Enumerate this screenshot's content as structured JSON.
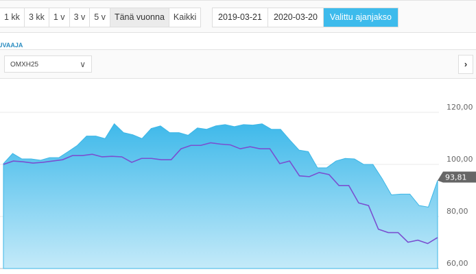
{
  "period_buttons": [
    {
      "label": "1 kk"
    },
    {
      "label": "3 kk"
    },
    {
      "label": "1 v"
    },
    {
      "label": "3 v"
    },
    {
      "label": "5 v"
    },
    {
      "label": "Tänä vuonna",
      "active": true
    },
    {
      "label": "Kaikki"
    }
  ],
  "date_range": {
    "start": "2019-03-21",
    "end": "2020-03-20",
    "apply_label": "Valittu ajanjakso"
  },
  "section_title": "UVAAJA",
  "index_select": {
    "value": "OMXH25"
  },
  "colors": {
    "accent": "#3dbbec",
    "area": "#4fc1ec",
    "line": "#7a4fd0",
    "label_bg": "#666666"
  },
  "icons": {
    "select": "chevron-down-icon",
    "next": "chevron-right-icon"
  },
  "chart_data": {
    "type": "area",
    "ylim": [
      60,
      120
    ],
    "yticks": [
      "120,00",
      "100,00",
      "80,00",
      "60,00"
    ],
    "ytick_values": [
      120,
      100,
      80,
      60
    ],
    "grid": true,
    "last_value_label": "93,81",
    "series": [
      {
        "type": "area",
        "values": [
          100.3,
          104.2,
          102.1,
          102.1,
          101.6,
          102.6,
          102.6,
          104.9,
          107.3,
          110.9,
          110.9,
          109.9,
          115.6,
          112.2,
          111.4,
          109.9,
          113.8,
          114.8,
          112.2,
          112.2,
          111.2,
          114.0,
          113.5,
          114.8,
          115.3,
          114.5,
          115.3,
          115.1,
          115.6,
          113.5,
          113.5,
          109.4,
          105.5,
          104.9,
          98.7,
          98.7,
          101.3,
          102.3,
          102.1,
          100.0,
          100.0,
          94.5,
          88.3,
          88.6,
          88.6,
          84.2,
          83.6,
          93.81
        ]
      },
      {
        "type": "line",
        "values": [
          100.0,
          101.3,
          101.0,
          100.5,
          100.8,
          101.3,
          101.8,
          103.4,
          103.4,
          103.9,
          102.9,
          103.1,
          102.9,
          100.8,
          102.3,
          102.3,
          101.8,
          101.8,
          106.0,
          107.3,
          107.3,
          108.3,
          107.8,
          107.5,
          106.0,
          106.8,
          106.0,
          106.0,
          100.3,
          101.3,
          95.6,
          95.3,
          96.9,
          96.1,
          91.9,
          91.9,
          85.2,
          84.2,
          75.1,
          73.8,
          73.8,
          70.1,
          70.9,
          69.6,
          71.9
        ]
      }
    ]
  }
}
